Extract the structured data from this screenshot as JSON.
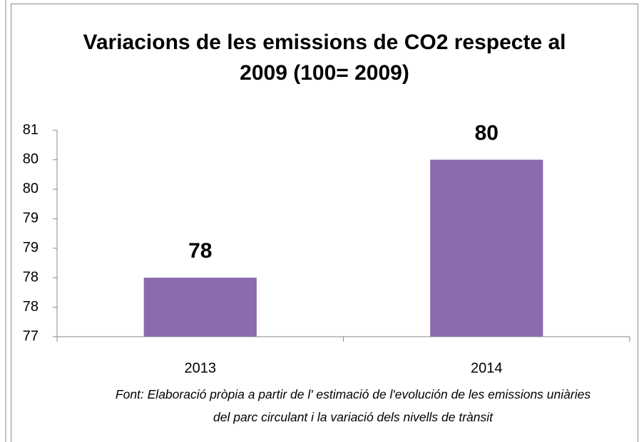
{
  "chart_data": {
    "type": "bar",
    "title": "Variacions de les emissions de CO2 respecte al 2009 (100= 2009)",
    "note": "Font: Elaboració pròpia  a partir de l' estimació de l'evolución de les emissions uniàries del  parc circulant i la variació dels nivells de trànsit",
    "categories": [
      "2013",
      "2014"
    ],
    "values": [
      78,
      80
    ],
    "color": "#8a6bae",
    "ylim": [
      77,
      80.5
    ],
    "yticks": [
      77,
      {
        "value": 77.5,
        "label": "78"
      },
      78,
      {
        "value": 78.5,
        "label": "79"
      },
      79,
      {
        "value": 79.5,
        "label": "80"
      },
      80,
      {
        "value": 80.5,
        "label": "81"
      }
    ],
    "grid": false
  }
}
